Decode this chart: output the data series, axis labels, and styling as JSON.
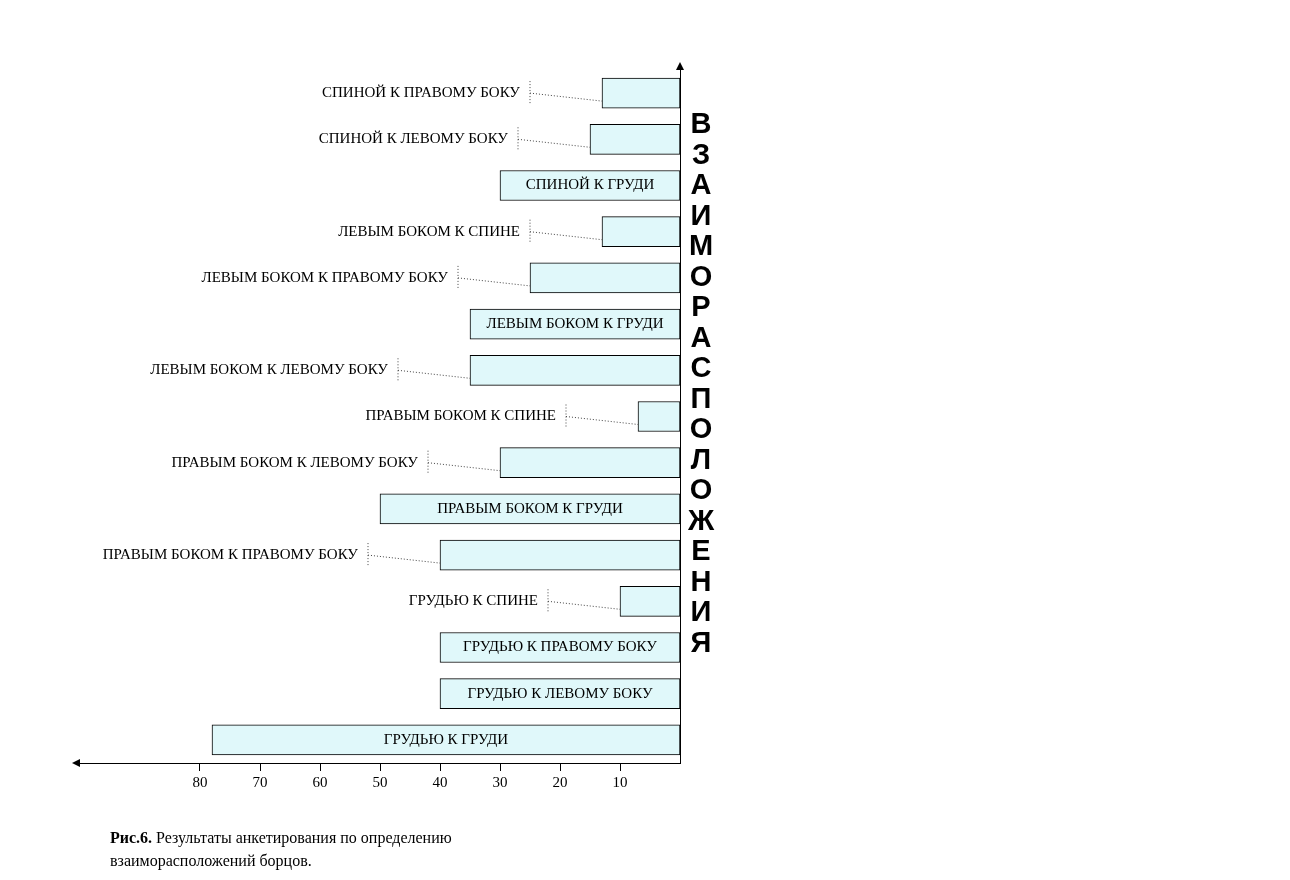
{
  "chart_data": {
    "type": "bar",
    "orientation": "horizontal",
    "ylabel": "ВЗАИМОРАСПОЛОЖЕНИЯ",
    "categories": [
      "СПИНОЙ К ПРАВОМУ БОКУ",
      "СПИНОЙ К ЛЕВОМУ БОКУ",
      "СПИНОЙ К ГРУДИ",
      "ЛЕВЫМ БОКОМ К СПИНЕ",
      "ЛЕВЫМ БОКОМ К ПРАВОМУ БОКУ",
      "ЛЕВЫМ БОКОМ К ГРУДИ",
      "ЛЕВЫМ БОКОМ К ЛЕВОМУ БОКУ",
      "ПРАВЫМ БОКОМ К СПИНЕ",
      "ПРАВЫМ БОКОМ К ЛЕВОМУ БОКУ",
      "ПРАВЫМ БОКОМ К ГРУДИ",
      "ПРАВЫМ БОКОМ К ПРАВОМУ БОКУ",
      "ГРУДЬЮ К СПИНЕ",
      "ГРУДЬЮ К ПРАВОМУ БОКУ",
      "ГРУДЬЮ К ЛЕВОМУ БОКУ",
      "ГРУДЬЮ К ГРУДИ"
    ],
    "values": [
      13,
      15,
      30,
      13,
      25,
      35,
      35,
      7,
      30,
      50,
      40,
      10,
      40,
      40,
      78
    ],
    "color": "#e0f8fa",
    "xlim": [
      100,
      0
    ],
    "xticks": [
      80,
      70,
      60,
      50,
      40,
      30,
      20,
      10
    ],
    "grid": false,
    "legend": false,
    "annotations": [
      "Рис.6.",
      "Результаты анкетирования по определению взаиморасположений борцов."
    ]
  }
}
